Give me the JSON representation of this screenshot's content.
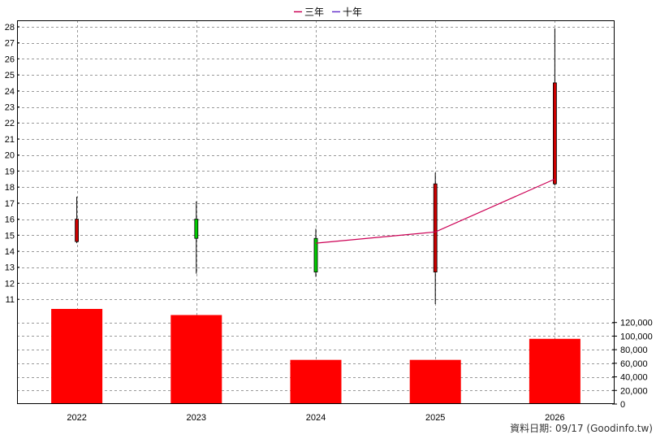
{
  "chart_data": {
    "type": "candlestick",
    "legend": {
      "placement": "top-center",
      "entries": [
        {
          "label": "三年",
          "color": "#cc0055"
        },
        {
          "label": "十年",
          "color": "#6633cc"
        }
      ]
    },
    "categories": [
      "2022",
      "2023",
      "2024",
      "2025",
      "2026"
    ],
    "price_axis": {
      "range": [
        10.4,
        28.4
      ],
      "ticks": [
        11,
        12,
        13,
        14,
        15,
        16,
        17,
        18,
        19,
        20,
        21,
        22,
        23,
        24,
        25,
        26,
        27,
        28
      ]
    },
    "candles": [
      {
        "category": "2022",
        "open": 16.0,
        "close": 14.6,
        "high": 17.4,
        "low": 14.5
      },
      {
        "category": "2023",
        "open": 14.8,
        "close": 16.0,
        "high": 17.1,
        "low": 12.6
      },
      {
        "category": "2024",
        "open": 12.7,
        "close": 14.8,
        "high": 15.4,
        "low": 12.4
      },
      {
        "category": "2025",
        "open": 18.2,
        "close": 12.7,
        "high": 18.9,
        "low": 10.7
      },
      {
        "category": "2026",
        "open": 24.5,
        "close": 18.2,
        "high": 27.9,
        "low": 18.1
      }
    ],
    "candle_colors": {
      "up": "#00cc00",
      "down": "#cc0000"
    },
    "series": [
      {
        "name": "三年",
        "color": "#cc0055",
        "points": [
          {
            "x": "2024",
            "y": 14.5
          },
          {
            "x": "2025",
            "y": 15.2
          },
          {
            "x": "2026",
            "y": 18.5
          }
        ]
      }
    ],
    "volume": {
      "values": [
        140000,
        131000,
        65000,
        65000,
        96000
      ],
      "color": "#ff0000",
      "range": [
        0,
        140000
      ],
      "ticks": [
        0,
        20000,
        40000,
        60000,
        80000,
        100000,
        120000
      ],
      "tick_labels": [
        "0",
        "20,000",
        "40,000",
        "60,000",
        "80,000",
        "100,000",
        "120,000"
      ]
    },
    "grid": true
  },
  "footer": {
    "note": "資料日期: 09/17  (Goodinfo.tw)"
  }
}
